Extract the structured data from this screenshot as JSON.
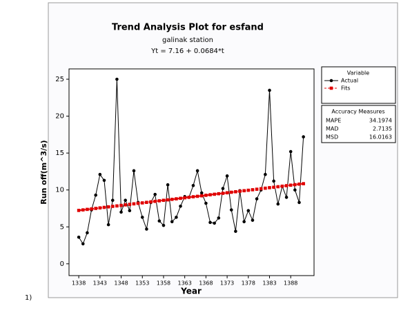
{
  "chart_data": {
    "type": "line",
    "title": "Trend Analysis Plot for esfand",
    "subtitle": "galinak station",
    "equation": "Yt = 7.16 + 0.0684*t",
    "xlabel": "Year",
    "ylabel": "Run off(m^3/s)",
    "caption": "1)",
    "x": [
      1338,
      1339,
      1340,
      1341,
      1342,
      1343,
      1344,
      1345,
      1346,
      1347,
      1348,
      1349,
      1350,
      1351,
      1352,
      1353,
      1354,
      1355,
      1356,
      1357,
      1358,
      1359,
      1360,
      1361,
      1362,
      1363,
      1364,
      1365,
      1366,
      1367,
      1368,
      1369,
      1370,
      1371,
      1372,
      1373,
      1374,
      1375,
      1376,
      1377,
      1378,
      1379,
      1380,
      1381,
      1382,
      1383,
      1384,
      1385,
      1386,
      1387,
      1388,
      1389,
      1390,
      1391
    ],
    "xlim": [
      1335.7,
      1393.5
    ],
    "xticks": [
      1338,
      1343,
      1348,
      1353,
      1358,
      1363,
      1368,
      1373,
      1378,
      1383,
      1388
    ],
    "ylim": [
      -1.6,
      26.4
    ],
    "yticks": [
      0,
      5,
      10,
      15,
      20,
      25
    ],
    "legend_title": "Variable",
    "series": [
      {
        "name": "Actual",
        "color": "#000000",
        "marker": "circle",
        "dashed": false,
        "values": [
          3.6,
          2.7,
          4.2,
          7.3,
          9.3,
          12.1,
          11.3,
          5.3,
          8.6,
          25.0,
          7.0,
          8.6,
          7.2,
          12.6,
          8.3,
          6.3,
          4.7,
          8.3,
          9.4,
          5.8,
          5.2,
          10.7,
          5.7,
          6.3,
          7.8,
          9.1,
          9.0,
          10.6,
          12.6,
          9.6,
          8.2,
          5.6,
          5.5,
          6.2,
          10.2,
          11.9,
          7.3,
          4.4,
          9.9,
          5.7,
          7.2,
          5.9,
          8.8,
          10.0,
          12.1,
          23.5,
          11.2,
          8.1,
          10.5,
          9.0,
          15.2,
          10.0,
          8.3,
          17.2
        ]
      },
      {
        "name": "Fits",
        "color": "#e00000",
        "marker": "square",
        "dashed": true,
        "values": [
          7.23,
          7.3,
          7.37,
          7.43,
          7.5,
          7.57,
          7.64,
          7.71,
          7.78,
          7.84,
          7.91,
          7.98,
          8.05,
          8.12,
          8.19,
          8.25,
          8.32,
          8.39,
          8.46,
          8.53,
          8.6,
          8.66,
          8.73,
          8.8,
          8.87,
          8.94,
          9.01,
          9.08,
          9.14,
          9.21,
          9.28,
          9.35,
          9.42,
          9.49,
          9.55,
          9.62,
          9.69,
          9.76,
          9.83,
          9.9,
          9.96,
          10.03,
          10.1,
          10.17,
          10.24,
          10.31,
          10.37,
          10.44,
          10.51,
          10.58,
          10.65,
          10.72,
          10.79,
          10.85
        ]
      }
    ],
    "accuracy": {
      "title": "Accuracy Measures",
      "rows": [
        [
          "MAPE",
          "34.1974"
        ],
        [
          "MAD",
          "2.7135"
        ],
        [
          "MSD",
          "16.0163"
        ]
      ]
    }
  }
}
